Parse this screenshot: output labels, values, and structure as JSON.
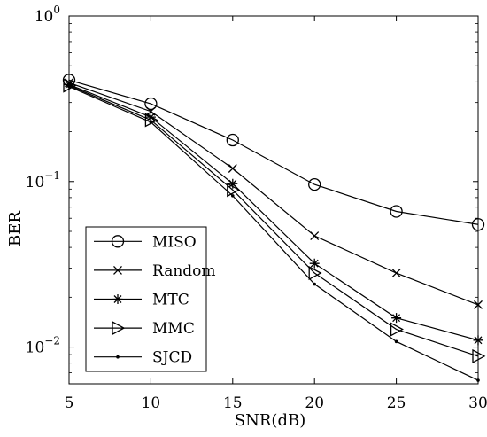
{
  "chart_data": {
    "type": "line",
    "xlabel": "SNR(dB)",
    "ylabel": "BER",
    "yscale": "log",
    "xlim": [
      5,
      30
    ],
    "ylim": [
      0.006,
      1
    ],
    "x": [
      5,
      10,
      15,
      20,
      25,
      30
    ],
    "x_tick_labels": [
      "5",
      "10",
      "15",
      "20",
      "25",
      "30"
    ],
    "y_ticks": [
      {
        "value": 1,
        "base": "10",
        "exp": "0"
      },
      {
        "value": 0.1,
        "base": "10",
        "exp": "−1"
      },
      {
        "value": 0.01,
        "base": "10",
        "exp": "−2"
      }
    ],
    "legend_position": "bottom-left",
    "grid": false,
    "series": [
      {
        "name": "MISO",
        "marker": "circle",
        "values": [
          0.41,
          0.295,
          0.178,
          0.096,
          0.066,
          0.055
        ]
      },
      {
        "name": "Random",
        "marker": "x",
        "values": [
          0.395,
          0.265,
          0.12,
          0.047,
          0.028,
          0.018
        ]
      },
      {
        "name": "MTC",
        "marker": "star",
        "values": [
          0.385,
          0.245,
          0.097,
          0.032,
          0.015,
          0.011
        ]
      },
      {
        "name": "MMC",
        "marker": "triangle-right",
        "values": [
          0.38,
          0.235,
          0.089,
          0.028,
          0.0128,
          0.0088
        ]
      },
      {
        "name": "SJCD",
        "marker": "dot",
        "values": [
          0.375,
          0.228,
          0.082,
          0.024,
          0.0108,
          0.0063
        ]
      }
    ]
  }
}
